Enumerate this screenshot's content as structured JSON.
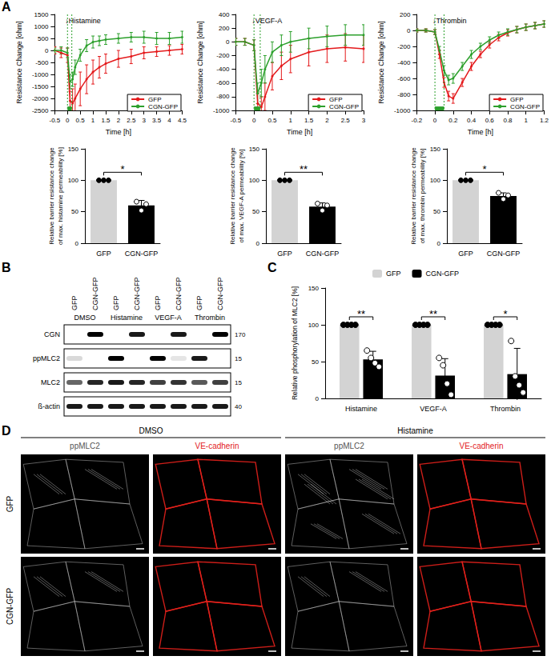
{
  "panel_labels": [
    "A",
    "B",
    "C",
    "D"
  ],
  "chart_data": [
    {
      "type": "line",
      "annotation": "↓Histamine",
      "xlabel": "Time [h]",
      "ylabel": "Resistance Change [ohm]",
      "xlim": [
        -0.5,
        4.5
      ],
      "xticks": [
        -0.5,
        0,
        0.5,
        1,
        1.5,
        2,
        2.5,
        3,
        3.5,
        4,
        4.5
      ],
      "ylim": [
        -2500,
        1500
      ],
      "yticks": [
        -2500,
        -2000,
        -1500,
        -1000,
        -500,
        0,
        500,
        1000,
        1500
      ],
      "stimulus": [
        0,
        0.17
      ],
      "legend": "lower right",
      "grid": false,
      "x": [
        -0.5,
        -0.25,
        0,
        0.1,
        0.2,
        0.3,
        0.5,
        0.75,
        1,
        1.25,
        1.5,
        2,
        2.5,
        3,
        3.5,
        4,
        4.5
      ],
      "series": [
        {
          "name": "GFP",
          "color": "#e41a1c",
          "marker": "circle",
          "values": [
            0,
            -100,
            -200,
            -2100,
            -2200,
            -2000,
            -1600,
            -1200,
            -900,
            -700,
            -550,
            -350,
            -250,
            -100,
            -50,
            0,
            50
          ],
          "errors": [
            150,
            200,
            300,
            400,
            600,
            600,
            700,
            600,
            500,
            450,
            400,
            350,
            300,
            250,
            200,
            200,
            200
          ]
        },
        {
          "name": "CGN-GFP",
          "color": "#2ca02c",
          "marker": "circle",
          "values": [
            0,
            0,
            -100,
            -1300,
            -1200,
            -700,
            -200,
            200,
            350,
            400,
            450,
            500,
            550,
            550,
            500,
            500,
            550
          ],
          "errors": [
            100,
            150,
            200,
            300,
            300,
            300,
            250,
            250,
            250,
            200,
            200,
            200,
            200,
            250,
            250,
            250,
            250
          ]
        }
      ]
    },
    {
      "type": "line",
      "annotation": "↓VEGF-A",
      "xlabel": "Time [h]",
      "ylabel": "Resistance Change [ohm]",
      "xlim": [
        -0.5,
        3
      ],
      "xticks": [
        -0.5,
        0,
        0.5,
        1,
        1.5,
        2,
        2.5,
        3
      ],
      "ylim": [
        -1000,
        400
      ],
      "yticks": [
        -1000,
        -800,
        -600,
        -400,
        -200,
        0,
        200,
        400
      ],
      "stimulus": [
        0,
        0.17
      ],
      "legend": "lower right",
      "grid": false,
      "x": [
        -0.5,
        -0.25,
        0,
        0.1,
        0.2,
        0.3,
        0.5,
        0.75,
        1,
        1.5,
        2,
        2.5,
        3
      ],
      "series": [
        {
          "name": "GFP",
          "color": "#e41a1c",
          "marker": "circle",
          "values": [
            0,
            0,
            -50,
            -900,
            -950,
            -800,
            -500,
            -350,
            -250,
            -150,
            -100,
            -80,
            -100
          ],
          "errors": [
            50,
            50,
            80,
            150,
            150,
            200,
            200,
            200,
            200,
            200,
            200,
            200,
            200
          ]
        },
        {
          "name": "CGN-GFP",
          "color": "#2ca02c",
          "marker": "circle",
          "values": [
            0,
            0,
            -50,
            -750,
            -600,
            -400,
            -150,
            -50,
            0,
            50,
            80,
            100,
            100
          ],
          "errors": [
            50,
            50,
            80,
            150,
            200,
            200,
            150,
            150,
            150,
            150,
            150,
            150,
            150
          ]
        }
      ]
    },
    {
      "type": "line",
      "annotation": "↓Thrombin",
      "xlabel": "Time [h]",
      "ylabel": "Resistance Change [ohm]",
      "xlim": [
        -0.2,
        1.2
      ],
      "xticks": [
        -0.2,
        0,
        0.2,
        0.4,
        0.6,
        0.8,
        1,
        1.2
      ],
      "ylim": [
        -1000,
        200
      ],
      "yticks": [
        -1000,
        -800,
        -600,
        -400,
        -200,
        0,
        200
      ],
      "stimulus": [
        0,
        0.1
      ],
      "legend": "lower right",
      "grid": false,
      "x": [
        -0.2,
        -0.1,
        0,
        0.05,
        0.1,
        0.15,
        0.2,
        0.3,
        0.4,
        0.5,
        0.6,
        0.7,
        0.8,
        0.9,
        1,
        1.1,
        1.2
      ],
      "series": [
        {
          "name": "GFP",
          "color": "#e41a1c",
          "marker": "circle",
          "values": [
            0,
            0,
            -20,
            -300,
            -650,
            -820,
            -850,
            -650,
            -450,
            -300,
            -180,
            -90,
            -30,
            10,
            40,
            60,
            80
          ],
          "errors": [
            20,
            20,
            30,
            50,
            60,
            60,
            60,
            50,
            50,
            40,
            40,
            40,
            40,
            40,
            40,
            40,
            40
          ]
        },
        {
          "name": "CGN-GFP",
          "color": "#2ca02c",
          "marker": "circle",
          "values": [
            0,
            0,
            -20,
            -250,
            -500,
            -620,
            -600,
            -450,
            -300,
            -200,
            -120,
            -60,
            -20,
            10,
            40,
            60,
            80
          ],
          "errors": [
            20,
            20,
            30,
            50,
            60,
            60,
            60,
            50,
            50,
            40,
            40,
            40,
            40,
            40,
            40,
            40,
            40
          ]
        }
      ]
    },
    {
      "type": "bar",
      "ylabel": "Relative barrier resistance change\nof max. histamine permeability [%]",
      "categories": [
        "GFP",
        "CGN-GFP"
      ],
      "values": [
        100,
        60
      ],
      "errors": [
        0,
        8
      ],
      "points": [
        [
          100,
          100,
          100
        ],
        [
          66,
          52,
          62
        ]
      ],
      "colors": [
        "#d3d3d3",
        "#000000"
      ],
      "ylim": [
        0,
        150
      ],
      "yticks": [
        0,
        50,
        100,
        150
      ],
      "significance": [
        "*"
      ],
      "grid": false
    },
    {
      "type": "bar",
      "ylabel": "Relative barrier resistance change\nof max. VEGF-A permeability [%]",
      "categories": [
        "GFP",
        "CGN-GFP"
      ],
      "values": [
        100,
        58
      ],
      "errors": [
        0,
        6
      ],
      "points": [
        [
          100,
          100,
          100
        ],
        [
          63,
          52,
          60
        ]
      ],
      "colors": [
        "#d3d3d3",
        "#000000"
      ],
      "ylim": [
        0,
        150
      ],
      "yticks": [
        0,
        50,
        100,
        150
      ],
      "significance": [
        "**"
      ],
      "grid": false
    },
    {
      "type": "bar",
      "ylabel": "Relative barrier resistance change\nof max. thrombin permeability [%]",
      "categories": [
        "GFP",
        "CGN-GFP"
      ],
      "values": [
        100,
        75
      ],
      "errors": [
        0,
        5
      ],
      "points": [
        [
          100,
          100,
          100
        ],
        [
          80,
          70,
          76
        ]
      ],
      "colors": [
        "#d3d3d3",
        "#000000"
      ],
      "ylim": [
        0,
        150
      ],
      "yticks": [
        0,
        50,
        100,
        150
      ],
      "significance": [
        "*"
      ],
      "grid": false
    },
    {
      "type": "bar",
      "ylabel": "Relative phosphorylation of MLC2 [%]",
      "categories": [
        "Histamine",
        "VEGF-A",
        "Thrombin"
      ],
      "series": [
        {
          "name": "GFP",
          "color": "#d3d3d3",
          "values": [
            100,
            100,
            100
          ],
          "errors": [
            0,
            0,
            0
          ],
          "points": [
            [
              100,
              100,
              100,
              100
            ],
            [
              100,
              100,
              100,
              100
            ],
            [
              100,
              100,
              100,
              100
            ]
          ]
        },
        {
          "name": "CGN-GFP",
          "color": "#000000",
          "values": [
            53,
            31,
            33
          ],
          "errors": [
            11,
            23,
            35
          ],
          "points": [
            [
              65,
              55,
              48,
              43
            ],
            [
              55,
              45,
              20,
              5
            ],
            [
              78,
              30,
              18,
              8
            ]
          ]
        }
      ],
      "ylim": [
        0,
        150
      ],
      "yticks": [
        0,
        50,
        100,
        150
      ],
      "significance": [
        "**",
        "**",
        "*"
      ],
      "legend": "top",
      "grid": false
    }
  ],
  "blot": {
    "lanes": [
      "GFP",
      "CGN-GFP",
      "GFP",
      "CGN-GFP",
      "GFP",
      "CGN-GFP",
      "GFP",
      "CGN-GFP"
    ],
    "treatments": [
      "DMSO",
      "Histamine",
      "VEGF-A",
      "Thrombin"
    ],
    "rows": [
      {
        "name": "CGN",
        "marker": 170,
        "signal": [
          0,
          1,
          0,
          0.9,
          0,
          0.9,
          0,
          1
        ]
      },
      {
        "name": "ppMLC2",
        "marker": 15,
        "signal": [
          0.15,
          0,
          1,
          0,
          1,
          0.1,
          0.9,
          0
        ]
      },
      {
        "name": "MLC2",
        "marker": 15,
        "signal": [
          0.6,
          0.85,
          0.9,
          0.85,
          0.75,
          0.8,
          0.65,
          0.75
        ]
      },
      {
        "name": "ß-actin",
        "marker": 40,
        "signal": [
          0.9,
          0.9,
          0.9,
          0.9,
          0.9,
          0.9,
          0.9,
          0.9
        ]
      }
    ]
  },
  "micrographs": {
    "treatments": [
      "DMSO",
      "Histamine"
    ],
    "channels": [
      {
        "name": "ppMLC2",
        "color": "#d9d9d9"
      },
      {
        "name": "VE-cadherin",
        "color": "#e3211c"
      }
    ],
    "rows": [
      "GFP",
      "CGN-GFP"
    ]
  }
}
